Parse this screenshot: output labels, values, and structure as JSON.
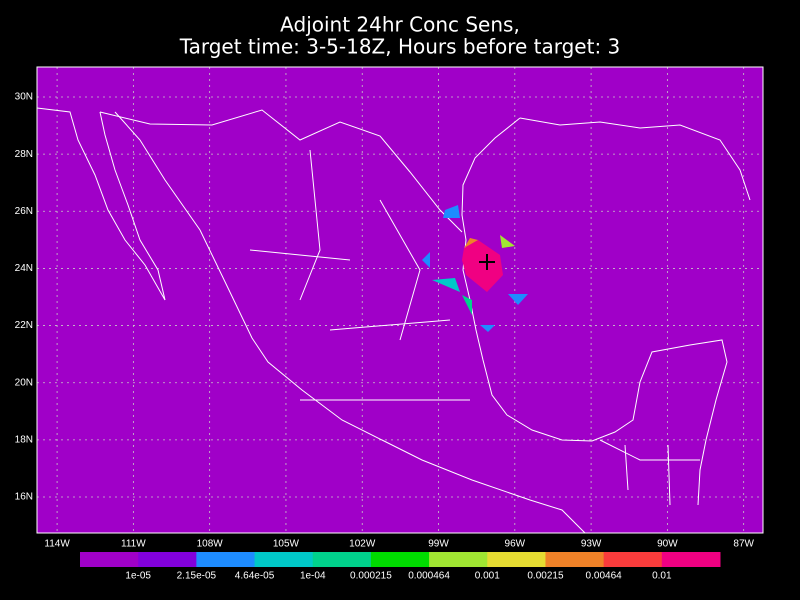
{
  "title": [
    "Adjoint 24hr Conc Sens,",
    "Target time: 3-5-18Z, Hours before target: 3"
  ],
  "map": {
    "xlim": [
      -114.79,
      -86.24
    ],
    "ylim": [
      14.74,
      31.05
    ],
    "background": "#a000c8",
    "grid": true,
    "xticks": [
      {
        "value": -114,
        "label": "114W"
      },
      {
        "value": -111,
        "label": "111W"
      },
      {
        "value": -108,
        "label": "108W"
      },
      {
        "value": -105,
        "label": "105W"
      },
      {
        "value": -102,
        "label": "102W"
      },
      {
        "value": -99,
        "label": "99W"
      },
      {
        "value": -96,
        "label": "96W"
      },
      {
        "value": -93,
        "label": "93W"
      },
      {
        "value": -90,
        "label": "90W"
      },
      {
        "value": -87,
        "label": "87W"
      }
    ],
    "yticks": [
      {
        "value": 16,
        "label": "16N"
      },
      {
        "value": 18,
        "label": "18N"
      },
      {
        "value": 20,
        "label": "20N"
      },
      {
        "value": 22,
        "label": "22N"
      },
      {
        "value": 24,
        "label": "24N"
      },
      {
        "value": 26,
        "label": "26N"
      },
      {
        "value": 28,
        "label": "28N"
      },
      {
        "value": 30,
        "label": "30N"
      }
    ]
  },
  "colorbar": {
    "colors": [
      "#a000c8",
      "#8200dc",
      "#1e8cff",
      "#00c8c8",
      "#00d28c",
      "#00dc00",
      "#a0e632",
      "#e6dc32",
      "#f08228",
      "#fa3c3c",
      "#f00082"
    ],
    "labels": [
      "1e-05",
      "2.15e-05",
      "4.64e-05",
      "1e-04",
      "0.000215",
      "0.000464",
      "0.001",
      "0.00215",
      "0.00464",
      "0.01"
    ]
  }
}
